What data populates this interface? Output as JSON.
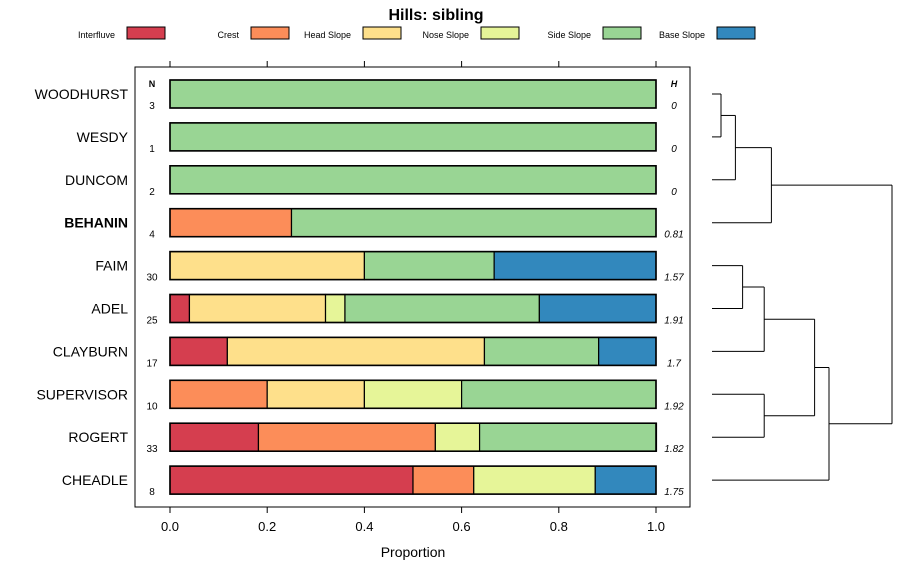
{
  "chart_data": {
    "type": "bar",
    "subtype": "stacked-horizontal-proportion",
    "title": "Hills: sibling",
    "xlabel": "Proportion",
    "ylabel": "",
    "xlim": [
      0,
      1
    ],
    "x_ticks": [
      "0.0",
      "0.2",
      "0.4",
      "0.6",
      "0.8",
      "1.0"
    ],
    "x_tick_values": [
      0,
      0.2,
      0.4,
      0.6,
      0.8,
      1.0
    ],
    "n_header": "N",
    "h_header": "H",
    "legend": [
      {
        "name": "Interfluve",
        "color": "#d53e4f"
      },
      {
        "name": "Crest",
        "color": "#fc8d59"
      },
      {
        "name": "Head Slope",
        "color": "#fee08b"
      },
      {
        "name": "Nose Slope",
        "color": "#e6f598"
      },
      {
        "name": "Side Slope",
        "color": "#99d594"
      },
      {
        "name": "Base Slope",
        "color": "#3288bd"
      }
    ],
    "rows": [
      {
        "name": "WOODHURST",
        "n": "3",
        "h": "0",
        "bold": false,
        "values": [
          0,
          0,
          0,
          0,
          1.0,
          0
        ]
      },
      {
        "name": "WESDY",
        "n": "1",
        "h": "0",
        "bold": false,
        "values": [
          0,
          0,
          0,
          0,
          1.0,
          0
        ]
      },
      {
        "name": "DUNCOM",
        "n": "2",
        "h": "0",
        "bold": false,
        "values": [
          0,
          0,
          0,
          0,
          1.0,
          0
        ]
      },
      {
        "name": "BEHANIN",
        "n": "4",
        "h": "0.81",
        "bold": true,
        "values": [
          0,
          0.25,
          0,
          0,
          0.75,
          0
        ]
      },
      {
        "name": "FAIM",
        "n": "30",
        "h": "1.57",
        "bold": false,
        "values": [
          0,
          0,
          0.4,
          0,
          0.267,
          0.333
        ]
      },
      {
        "name": "ADEL",
        "n": "25",
        "h": "1.91",
        "bold": false,
        "values": [
          0.04,
          0,
          0.28,
          0.04,
          0.4,
          0.24
        ]
      },
      {
        "name": "CLAYBURN",
        "n": "17",
        "h": "1.7",
        "bold": false,
        "values": [
          0.118,
          0,
          0.529,
          0,
          0.235,
          0.118
        ]
      },
      {
        "name": "SUPERVISOR",
        "n": "10",
        "h": "1.92",
        "bold": false,
        "values": [
          0,
          0.2,
          0.2,
          0.2,
          0.4,
          0
        ]
      },
      {
        "name": "ROGERT",
        "n": "33",
        "h": "1.82",
        "bold": false,
        "values": [
          0.182,
          0.364,
          0,
          0.091,
          0.364,
          0
        ]
      },
      {
        "name": "CHEADLE",
        "n": "8",
        "h": "1.75",
        "bold": false,
        "values": [
          0.5,
          0.125,
          0,
          0.25,
          0,
          0.125
        ]
      }
    ],
    "dendrogram": {
      "merges": [
        {
          "a": 0,
          "b": 1,
          "height": 0.05
        },
        {
          "a": "m0",
          "b": 2,
          "height": 0.13
        },
        {
          "a": "m1",
          "b": 3,
          "height": 0.33
        },
        {
          "a": 4,
          "b": 5,
          "height": 0.17
        },
        {
          "a": "m3",
          "b": 6,
          "height": 0.29
        },
        {
          "a": 7,
          "b": 8,
          "height": 0.29
        },
        {
          "a": "m4",
          "b": "m5",
          "height": 0.57
        },
        {
          "a": "m6",
          "b": 9,
          "height": 0.65
        },
        {
          "a": "m2",
          "b": "m7",
          "height": 1.0
        }
      ]
    }
  }
}
